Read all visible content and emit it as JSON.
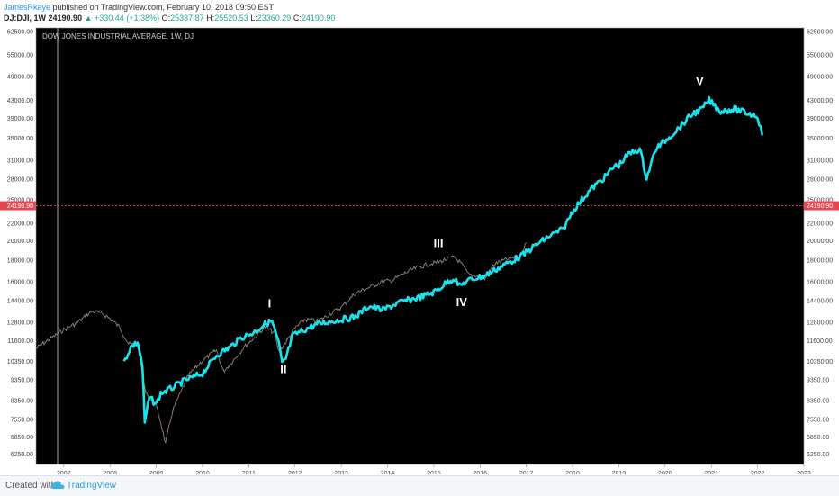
{
  "header": {
    "author": "JamesRkaye",
    "published": "published on TradingView.com, February 10, 2018 09:50 EST",
    "symbol": "DJ:DJI, 1W",
    "last": "24190.90",
    "change": "+330.44 (+1.38%)",
    "o_label": "O:",
    "o_value": "25337.87",
    "h_label": "H:",
    "h_value": "25520.53",
    "l_label": "L:",
    "l_value": "23360.29",
    "c_label": "C:",
    "c_value": "24190.90"
  },
  "footer": {
    "created_with": "Created with",
    "brand": "TradingView",
    "logo_icon": "tradingview-cloud-icon"
  },
  "chart_data": {
    "type": "line",
    "title": "DOW JONES INDUSTRIAL AVERAGE, 1W, DJ",
    "background": "#000000",
    "colors": {
      "projection": "#18e4ee",
      "actual_up": "#8a8a8a",
      "actual_down": "#b84a4a",
      "price_line": "#e05050",
      "price_label_bg": "#e8474f"
    },
    "x_axis": {
      "ticks": [
        "2007",
        "2008",
        "2009",
        "2010",
        "2011",
        "2012",
        "2013",
        "2014",
        "2015",
        "2016",
        "2017",
        "2018",
        "2019",
        "2020",
        "2021",
        "2022",
        "2023"
      ],
      "range": [
        2006.4,
        2023.0
      ]
    },
    "y_axis": {
      "scale": "log",
      "range": [
        5900,
        63800
      ],
      "ticks": [
        "62500.00",
        "55000.00",
        "49000.00",
        "43000.00",
        "39000.00",
        "35000.00",
        "31000.00",
        "28000.00",
        "25000.00",
        "22000.00",
        "20000.00",
        "18000.00",
        "16000.00",
        "14400.00",
        "12800.00",
        "11600.00",
        "10350.00",
        "9350.00",
        "8350.00",
        "7550.00",
        "6850.00",
        "6250.00"
      ]
    },
    "current_price": "24190.90",
    "series": [
      {
        "style": "cyan",
        "x": [
          2008.3,
          2008.45,
          2008.6,
          2008.7,
          2008.75,
          2008.85,
          2009.0,
          2009.1,
          2009.3,
          2009.6,
          2010.0,
          2010.3,
          2010.6,
          2010.85,
          2011.1,
          2011.35,
          2011.5,
          2011.65,
          2011.72,
          2011.8,
          2011.95,
          2012.2,
          2012.5,
          2012.8,
          2013.0,
          2013.3,
          2013.6,
          2013.9,
          2014.2,
          2014.5,
          2014.8,
          2015.0,
          2015.15,
          2015.3,
          2015.45,
          2015.55,
          2015.7,
          2015.9,
          2016.1,
          2016.3,
          2016.6,
          2016.9,
          2017.2,
          2017.5,
          2017.8,
          2018.0,
          2018.2,
          2018.4,
          2018.7,
          2018.9,
          2019.0,
          2019.2,
          2019.45,
          2019.6,
          2019.8,
          2020.0,
          2020.3,
          2020.6,
          2020.8,
          2020.95,
          2021.2,
          2021.5,
          2021.8,
          2022.0,
          2022.1
        ],
        "y": [
          10300,
          11200,
          11500,
          10100,
          7400,
          8500,
          8200,
          8700,
          8900,
          9300,
          9700,
          10700,
          11200,
          11800,
          12100,
          12700,
          12900,
          11400,
          10200,
          10500,
          11900,
          12300,
          12700,
          12900,
          13000,
          13200,
          14000,
          13700,
          14200,
          14500,
          14800,
          15100,
          15500,
          16000,
          16300,
          15600,
          16000,
          16300,
          16500,
          17000,
          17700,
          18400,
          19500,
          20500,
          21300,
          23500,
          25000,
          26500,
          28300,
          30000,
          30200,
          32000,
          33000,
          28200,
          33000,
          34500,
          37000,
          40000,
          41000,
          43000,
          40500,
          41000,
          40000,
          39500,
          35500
        ]
      },
      {
        "style": "actual",
        "x": [
          2006.4,
          2006.7,
          2007.0,
          2007.3,
          2007.6,
          2007.8,
          2007.95,
          2008.2,
          2008.4,
          2008.6,
          2008.75,
          2008.9,
          2009.0,
          2009.1,
          2009.2,
          2009.35,
          2009.5,
          2009.7,
          2010.0,
          2010.3,
          2010.45,
          2010.6,
          2010.9,
          2011.2,
          2011.35,
          2011.55,
          2011.65,
          2011.8,
          2012.0,
          2012.2,
          2012.5,
          2012.8,
          2013.0,
          2013.3,
          2013.6,
          2013.9,
          2014.1,
          2014.3,
          2014.6,
          2014.9,
          2015.1,
          2015.3,
          2015.45,
          2015.6,
          2015.75,
          2016.0,
          2016.1,
          2016.3,
          2016.6,
          2016.85,
          2017.0
        ],
        "y": [
          11100,
          11700,
          12300,
          12800,
          13600,
          13500,
          13200,
          12500,
          11400,
          11300,
          8900,
          8300,
          8100,
          7400,
          6600,
          7900,
          8600,
          9600,
          10400,
          11000,
          9800,
          10200,
          11200,
          12000,
          12500,
          12100,
          10900,
          11500,
          12400,
          13000,
          12900,
          13500,
          13900,
          15000,
          15500,
          16000,
          16100,
          16600,
          17200,
          17600,
          17800,
          18100,
          18300,
          17600,
          16600,
          16500,
          16200,
          17600,
          18100,
          18300,
          19800
        ]
      }
    ],
    "annotations": [
      {
        "text": "I",
        "x": 2011.45,
        "y": 13900
      },
      {
        "text": "II",
        "x": 2011.75,
        "y": 9700
      },
      {
        "text": "III",
        "x": 2015.1,
        "y": 19300
      },
      {
        "text": "IV",
        "x": 2015.6,
        "y": 14000
      },
      {
        "text": "V",
        "x": 2020.75,
        "y": 46700
      }
    ]
  }
}
